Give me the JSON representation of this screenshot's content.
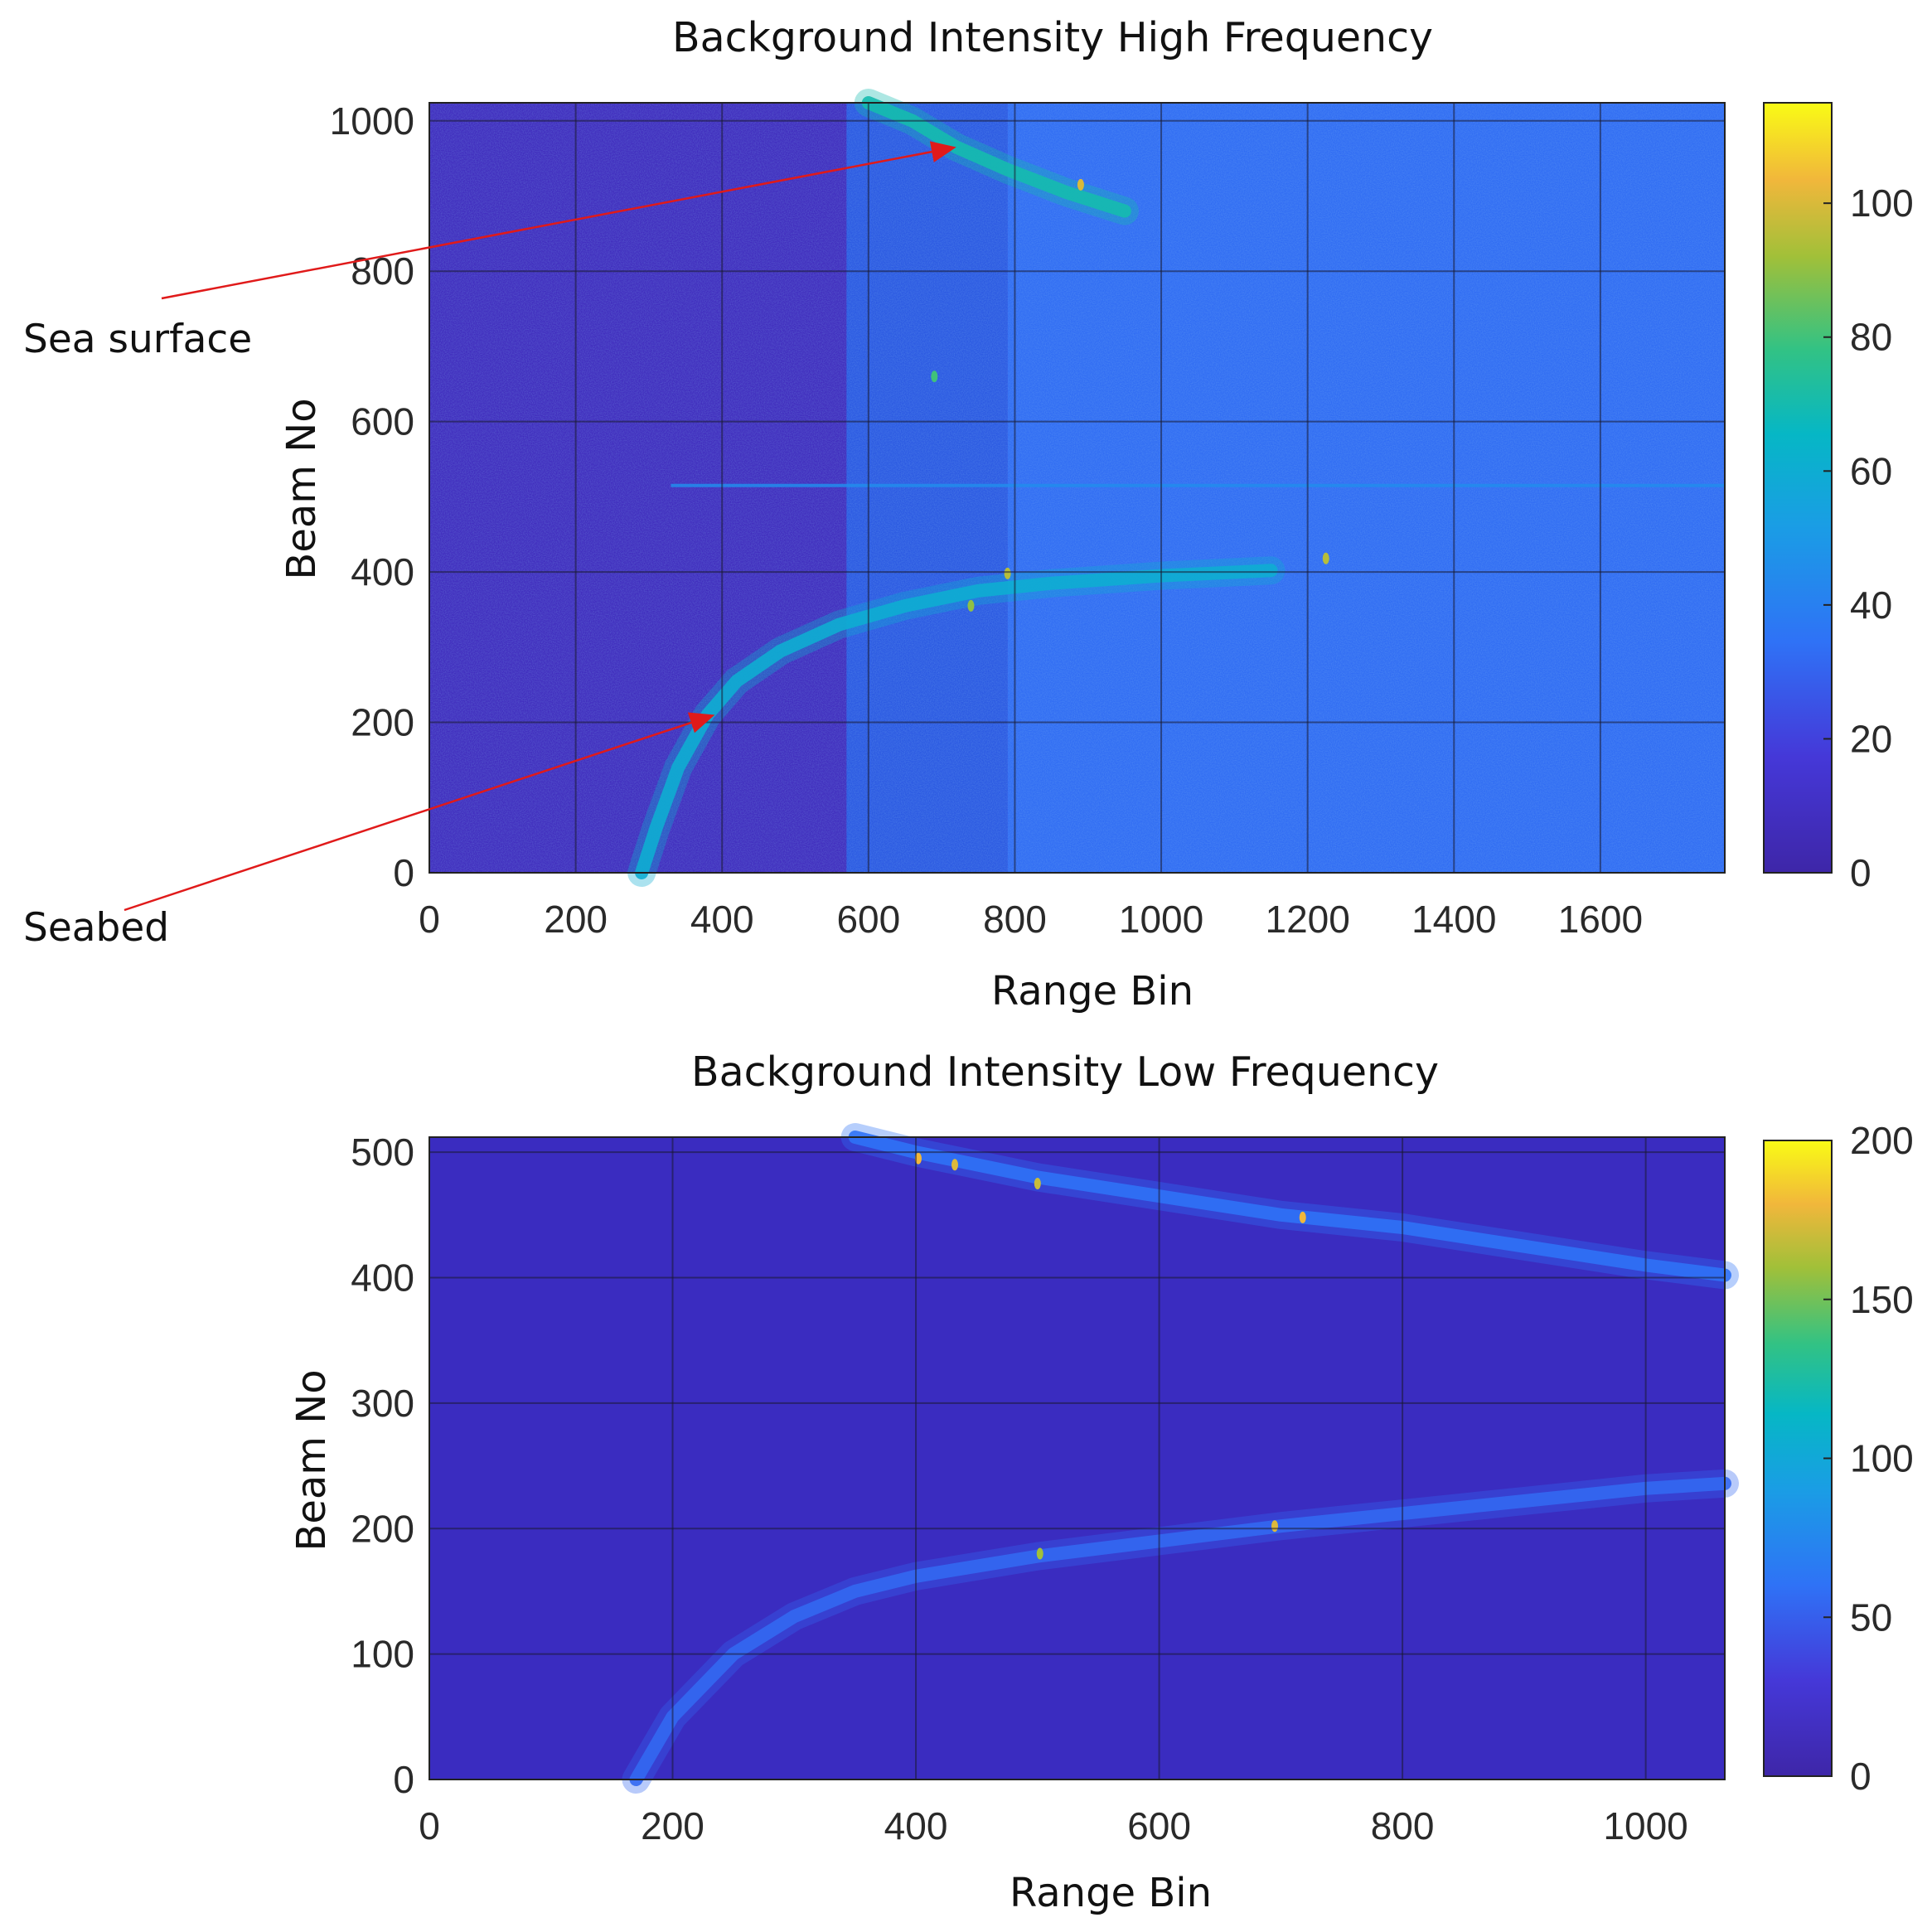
{
  "chart_data": [
    {
      "type": "heatmap",
      "title": "Background Intensity High Frequency",
      "xlabel": "Range Bin",
      "ylabel": "Beam No",
      "xlim": [
        0,
        1770
      ],
      "ylim": [
        0,
        1024
      ],
      "xticks": [
        0,
        200,
        400,
        600,
        800,
        1000,
        1200,
        1400,
        1600
      ],
      "yticks": [
        0,
        200,
        400,
        600,
        800,
        1000
      ],
      "grid": true,
      "colormap": "parula",
      "colorbar": {
        "range": [
          0,
          115
        ],
        "ticks": [
          0,
          20,
          40,
          60,
          80,
          100
        ]
      },
      "background_levels": {
        "near_range": 8,
        "far_range": 33,
        "transition_bin": 790
      },
      "features": {
        "seabed_curve": {
          "x": [
            290,
            310,
            340,
            380,
            420,
            480,
            560,
            650,
            750,
            850,
            1000,
            1150
          ],
          "y": [
            0,
            60,
            140,
            210,
            255,
            295,
            330,
            355,
            375,
            385,
            395,
            402
          ],
          "intensity": 60
        },
        "sea_surface_curve": {
          "x": [
            600,
            660,
            720,
            790,
            870,
            950
          ],
          "y": [
            1024,
            1000,
            965,
            935,
            905,
            880
          ],
          "intensity": 70
        },
        "horizontal_line": {
          "y": 515,
          "x_from": 330,
          "x_to": 1770,
          "intensity": 45
        },
        "bright_spots": [
          {
            "x": 890,
            "y": 915,
            "value": 100
          },
          {
            "x": 1225,
            "y": 418,
            "value": 95
          },
          {
            "x": 790,
            "y": 398,
            "value": 95
          },
          {
            "x": 740,
            "y": 355,
            "value": 90
          },
          {
            "x": 690,
            "y": 660,
            "value": 80
          }
        ]
      },
      "annotations": [
        {
          "text": "Sea surface",
          "points_to": {
            "x": 720,
            "y": 965
          }
        },
        {
          "text": "Seabed",
          "points_to": {
            "x": 390,
            "y": 210
          }
        }
      ]
    },
    {
      "type": "heatmap",
      "title": "Background Intensity Low Frequency",
      "xlabel": "Range Bin",
      "ylabel": "Beam No",
      "xlim": [
        0,
        1065
      ],
      "ylim": [
        0,
        512
      ],
      "xticks": [
        0,
        200,
        400,
        600,
        800,
        1000
      ],
      "yticks": [
        0,
        100,
        200,
        300,
        400,
        500
      ],
      "grid": true,
      "colormap": "parula",
      "colorbar": {
        "range": [
          0,
          200
        ],
        "ticks": [
          0,
          50,
          100,
          150,
          200
        ]
      },
      "background_levels": {
        "near_range": 12,
        "far_range": 14
      },
      "features": {
        "seabed_curve": {
          "x": [
            170,
            200,
            250,
            300,
            350,
            400,
            500,
            600,
            700,
            800,
            900,
            1000,
            1065
          ],
          "y": [
            0,
            50,
            100,
            130,
            150,
            162,
            178,
            190,
            202,
            212,
            222,
            232,
            236
          ],
          "intensity": 55
        },
        "sea_surface_curve": {
          "x": [
            350,
            400,
            500,
            600,
            700,
            800,
            900,
            1000,
            1065
          ],
          "y": [
            512,
            500,
            480,
            465,
            450,
            440,
            425,
            410,
            402
          ],
          "intensity": 60
        },
        "bright_spots": [
          {
            "x": 402,
            "y": 495,
            "value": 180
          },
          {
            "x": 432,
            "y": 490,
            "value": 175
          },
          {
            "x": 500,
            "y": 475,
            "value": 170
          },
          {
            "x": 718,
            "y": 448,
            "value": 180
          },
          {
            "x": 695,
            "y": 202,
            "value": 175
          },
          {
            "x": 502,
            "y": 180,
            "value": 160
          }
        ]
      },
      "annotations": []
    }
  ]
}
